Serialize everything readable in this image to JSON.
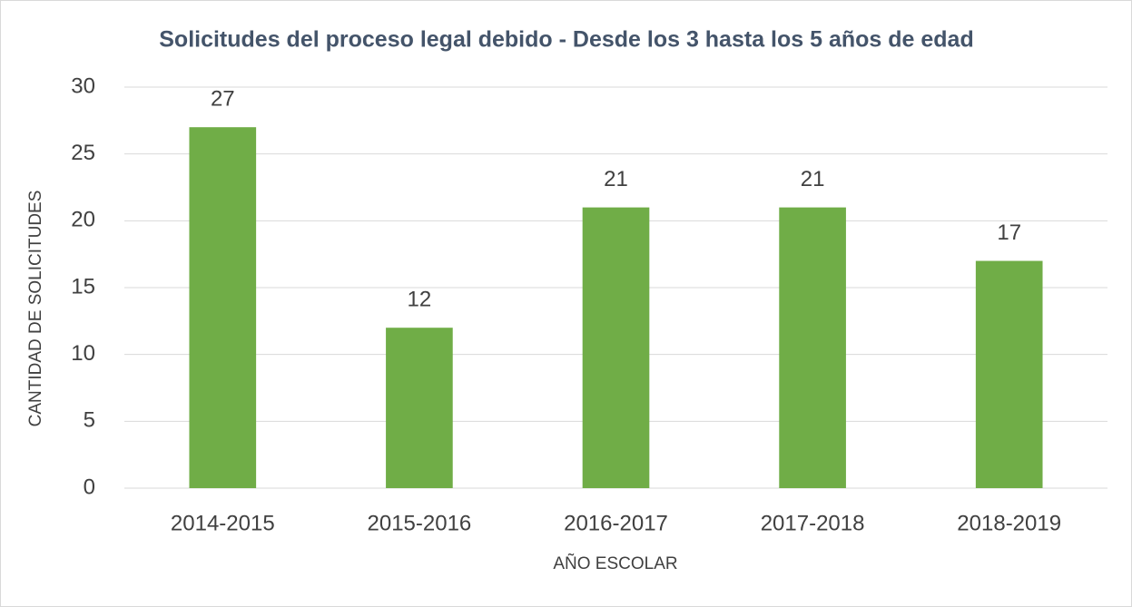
{
  "chart_data": {
    "type": "bar",
    "title": "Solicitudes del proceso legal debido - Desde los 3 hasta los 5 años de edad",
    "x_label": "AÑO ESCOLAR",
    "y_label": "CANTIDAD DE SOLICITUDES",
    "categories": [
      "2014-2015",
      "2015-2016",
      "2016-2017",
      "2017-2018",
      "2018-2019"
    ],
    "values": [
      27,
      12,
      21,
      21,
      17
    ],
    "color": "#70ad47",
    "ylim": [
      0,
      30
    ],
    "yticks": [
      0,
      5,
      10,
      15,
      20,
      25,
      30
    ],
    "grid": true
  }
}
